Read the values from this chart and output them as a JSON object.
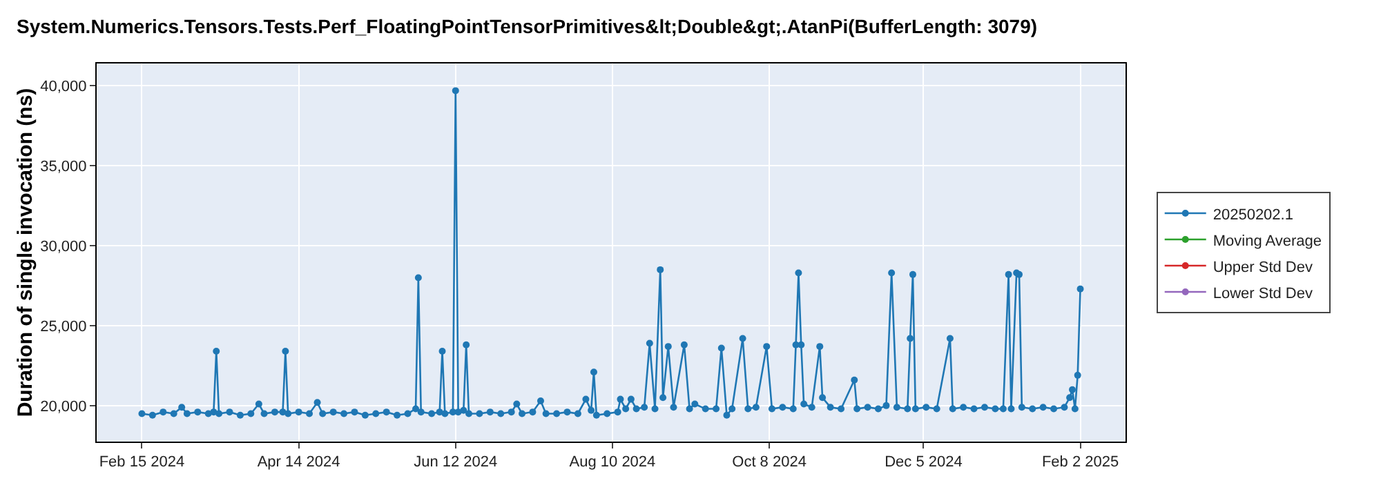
{
  "chart_data": {
    "type": "line",
    "title": "System.Numerics.Tensors.Tests.Perf_FloatingPointTensorPrimitives&lt;Double&gt;.AtanPi(BufferLength: 3079)",
    "ylabel": "Duration of single invocation (ns)",
    "x": [
      "2024-02-15",
      "2024-02-19",
      "2024-02-23",
      "2024-02-27",
      "2024-03-01",
      "2024-03-03",
      "2024-03-07",
      "2024-03-11",
      "2024-03-13",
      "2024-03-14",
      "2024-03-15",
      "2024-03-19",
      "2024-03-23",
      "2024-03-27",
      "2024-03-30",
      "2024-04-01",
      "2024-04-05",
      "2024-04-08",
      "2024-04-09",
      "2024-04-10",
      "2024-04-14",
      "2024-04-18",
      "2024-04-21",
      "2024-04-23",
      "2024-04-27",
      "2024-05-01",
      "2024-05-05",
      "2024-05-09",
      "2024-05-13",
      "2024-05-17",
      "2024-05-21",
      "2024-05-25",
      "2024-05-28",
      "2024-05-29",
      "2024-05-30",
      "2024-06-03",
      "2024-06-06",
      "2024-06-07",
      "2024-06-08",
      "2024-06-11",
      "2024-06-12",
      "2024-06-13",
      "2024-06-15",
      "2024-06-16",
      "2024-06-17",
      "2024-06-21",
      "2024-06-25",
      "2024-06-29",
      "2024-07-03",
      "2024-07-05",
      "2024-07-07",
      "2024-07-11",
      "2024-07-14",
      "2024-07-16",
      "2024-07-20",
      "2024-07-24",
      "2024-07-28",
      "2024-07-31",
      "2024-08-02",
      "2024-08-03",
      "2024-08-04",
      "2024-08-08",
      "2024-08-12",
      "2024-08-13",
      "2024-08-15",
      "2024-08-17",
      "2024-08-19",
      "2024-08-22",
      "2024-08-24",
      "2024-08-26",
      "2024-08-28",
      "2024-08-29",
      "2024-08-31",
      "2024-09-02",
      "2024-09-06",
      "2024-09-08",
      "2024-09-10",
      "2024-09-14",
      "2024-09-18",
      "2024-09-20",
      "2024-09-22",
      "2024-09-24",
      "2024-09-28",
      "2024-09-30",
      "2024-10-03",
      "2024-10-07",
      "2024-10-09",
      "2024-10-13",
      "2024-10-17",
      "2024-10-18",
      "2024-10-19",
      "2024-10-20",
      "2024-10-21",
      "2024-10-24",
      "2024-10-27",
      "2024-10-28",
      "2024-10-31",
      "2024-11-04",
      "2024-11-09",
      "2024-11-10",
      "2024-11-14",
      "2024-11-18",
      "2024-11-21",
      "2024-11-23",
      "2024-11-25",
      "2024-11-29",
      "2024-11-30",
      "2024-12-01",
      "2024-12-02",
      "2024-12-06",
      "2024-12-10",
      "2024-12-15",
      "2024-12-16",
      "2024-12-20",
      "2024-12-24",
      "2024-12-28",
      "2025-01-01",
      "2025-01-04",
      "2025-01-06",
      "2025-01-07",
      "2025-01-09",
      "2025-01-10",
      "2025-01-11",
      "2025-01-15",
      "2025-01-19",
      "2025-01-23",
      "2025-01-27",
      "2025-01-29",
      "2025-01-30",
      "2025-01-31",
      "2025-02-01",
      "2025-02-02"
    ],
    "series": [
      {
        "name": "20250202.1",
        "color": "#1f77b4",
        "values": [
          19500,
          19400,
          19600,
          19500,
          19900,
          19500,
          19600,
          19500,
          19600,
          23400,
          19500,
          19600,
          19400,
          19500,
          20100,
          19500,
          19600,
          19600,
          23400,
          19500,
          19600,
          19500,
          20200,
          19500,
          19600,
          19500,
          19600,
          19400,
          19500,
          19600,
          19400,
          19500,
          19800,
          28000,
          19600,
          19500,
          19600,
          23400,
          19500,
          19600,
          39700,
          19600,
          19700,
          23800,
          19500,
          19500,
          19600,
          19500,
          19600,
          20100,
          19500,
          19600,
          20300,
          19500,
          19500,
          19600,
          19500,
          20400,
          19700,
          22100,
          19400,
          19500,
          19600,
          20400,
          19800,
          20400,
          19800,
          19900,
          23900,
          19800,
          28500,
          20500,
          23700,
          19900,
          23800,
          19800,
          20100,
          19800,
          19800,
          23600,
          19400,
          19800,
          24200,
          19800,
          19900,
          23700,
          19800,
          19900,
          19800,
          23800,
          28300,
          23800,
          20100,
          19900,
          23700,
          20500,
          19900,
          19800,
          21600,
          19800,
          19900,
          19800,
          20000,
          28300,
          19900,
          19800,
          24200,
          28200,
          19800,
          19900,
          19800,
          24200,
          19800,
          19900,
          19800,
          19900,
          19800,
          19800,
          28200,
          19800,
          28300,
          28200,
          19900,
          19800,
          19900,
          19800,
          19900,
          20500,
          21000,
          19800,
          21900,
          27300
        ]
      },
      {
        "name": "Moving Average",
        "color": "#2ca02c",
        "values": [
          null,
          null,
          null,
          null,
          null,
          null,
          null,
          null,
          null,
          null,
          null,
          null,
          null,
          null,
          null,
          null,
          null,
          null,
          null,
          null,
          null,
          null,
          null,
          null,
          null,
          null,
          null,
          null,
          null,
          null,
          null,
          null,
          null,
          null,
          null,
          null,
          null,
          null,
          null,
          null,
          null,
          null,
          null,
          null,
          null,
          null,
          null,
          null,
          null,
          null,
          null,
          null,
          null,
          null,
          null,
          null,
          null,
          null,
          null,
          null,
          null,
          null,
          null,
          null,
          null,
          null,
          null,
          null,
          null,
          null,
          null,
          null,
          null,
          null,
          null,
          null,
          null,
          null,
          null,
          null,
          null,
          null,
          null,
          null,
          null,
          null,
          null,
          null,
          null,
          null,
          null,
          null,
          null,
          null,
          null,
          null,
          null,
          null,
          null,
          null,
          null,
          null,
          null,
          null,
          null,
          null,
          null,
          null,
          null,
          null,
          null,
          null,
          null,
          null,
          null,
          null,
          null,
          null,
          null,
          null,
          null,
          null,
          null,
          null,
          null,
          null,
          null,
          null,
          null,
          null,
          null,
          null
        ]
      },
      {
        "name": "Upper Std Dev",
        "color": "#d62728",
        "values": [
          null,
          null,
          null,
          null,
          null,
          null,
          null,
          null,
          null,
          null,
          null,
          null,
          null,
          null,
          null,
          null,
          null,
          null,
          null,
          null,
          null,
          null,
          null,
          null,
          null,
          null,
          null,
          null,
          null,
          null,
          null,
          null,
          null,
          null,
          null,
          null,
          null,
          null,
          null,
          null,
          null,
          null,
          null,
          null,
          null,
          null,
          null,
          null,
          null,
          null,
          null,
          null,
          null,
          null,
          null,
          null,
          null,
          null,
          null,
          null,
          null,
          null,
          null,
          null,
          null,
          null,
          null,
          null,
          null,
          null,
          null,
          null,
          null,
          null,
          null,
          null,
          null,
          null,
          null,
          null,
          null,
          null,
          null,
          null,
          null,
          null,
          null,
          null,
          null,
          null,
          null,
          null,
          null,
          null,
          null,
          null,
          null,
          null,
          null,
          null,
          null,
          null,
          null,
          null,
          null,
          null,
          null,
          null,
          null,
          null,
          null,
          null,
          null,
          null,
          null,
          null,
          null,
          null,
          null,
          null,
          null,
          null,
          null,
          null,
          null,
          null,
          null,
          null,
          null,
          null,
          null,
          null
        ]
      },
      {
        "name": "Lower Std Dev",
        "color": "#9467bd",
        "values": [
          null,
          null,
          null,
          null,
          null,
          null,
          null,
          null,
          null,
          null,
          null,
          null,
          null,
          null,
          null,
          null,
          null,
          null,
          null,
          null,
          null,
          null,
          null,
          null,
          null,
          null,
          null,
          null,
          null,
          null,
          null,
          null,
          null,
          null,
          null,
          null,
          null,
          null,
          null,
          null,
          null,
          null,
          null,
          null,
          null,
          null,
          null,
          null,
          null,
          null,
          null,
          null,
          null,
          null,
          null,
          null,
          null,
          null,
          null,
          null,
          null,
          null,
          null,
          null,
          null,
          null,
          null,
          null,
          null,
          null,
          null,
          null,
          null,
          null,
          null,
          null,
          null,
          null,
          null,
          null,
          null,
          null,
          null,
          null,
          null,
          null,
          null,
          null,
          null,
          null,
          null,
          null,
          null,
          null,
          null,
          null,
          null,
          null,
          null,
          null,
          null,
          null,
          null,
          null,
          null,
          null,
          null,
          null,
          null,
          null,
          null,
          null,
          null,
          null,
          null,
          null,
          null,
          null,
          null,
          null,
          null,
          null,
          null,
          null,
          null,
          null,
          null,
          null,
          null,
          null,
          null,
          null
        ]
      }
    ],
    "xlim": [
      "2024-01-29",
      "2025-02-19"
    ],
    "xticks": [
      {
        "value": "2024-02-15",
        "label": "Feb 15 2024"
      },
      {
        "value": "2024-04-14",
        "label": "Apr 14 2024"
      },
      {
        "value": "2024-06-12",
        "label": "Jun 12 2024"
      },
      {
        "value": "2024-08-10",
        "label": "Aug 10 2024"
      },
      {
        "value": "2024-10-08",
        "label": "Oct 8 2024"
      },
      {
        "value": "2024-12-05",
        "label": "Dec 5 2024"
      },
      {
        "value": "2025-02-02",
        "label": "Feb 2 2025"
      }
    ],
    "ylim": [
      17750,
      41400
    ],
    "yticks": [
      {
        "value": 20000,
        "label": "20,000"
      },
      {
        "value": 25000,
        "label": "25,000"
      },
      {
        "value": 30000,
        "label": "30,000"
      },
      {
        "value": 35000,
        "label": "35,000"
      },
      {
        "value": 40000,
        "label": "40,000"
      }
    ],
    "grid": true,
    "legend": "right",
    "marker": "circle",
    "line_style": "solid"
  }
}
